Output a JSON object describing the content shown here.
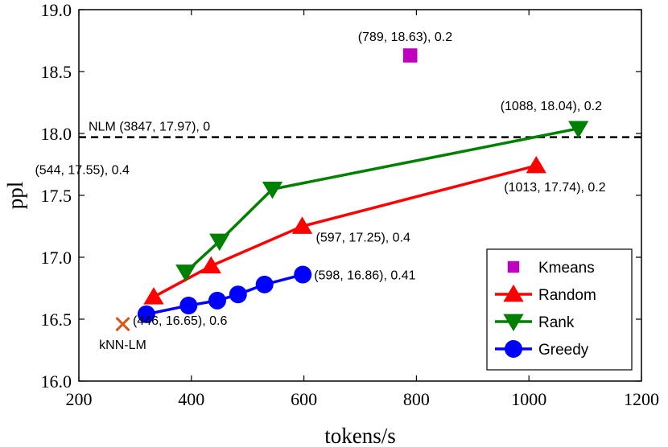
{
  "chart_data": {
    "type": "line",
    "xlabel": "tokens/s",
    "ylabel": "ppl",
    "xlim": [
      200,
      1200
    ],
    "ylim": [
      16.0,
      19.0
    ],
    "xticks": [
      200,
      400,
      600,
      800,
      1000,
      1200
    ],
    "yticks": [
      16.0,
      16.5,
      17.0,
      17.5,
      18.0,
      18.5,
      19.0
    ],
    "xtick_labels": [
      "200",
      "400",
      "600",
      "800",
      "1000",
      "1200"
    ],
    "ytick_labels": [
      "16.0",
      "16.5",
      "17.0",
      "17.5",
      "18.0",
      "18.5",
      "19.0"
    ],
    "grid": false,
    "legend_position": "bottom-right",
    "reference_line": {
      "name": "NLM",
      "y": 17.97,
      "label": "NLM (3847, 17.97), 0"
    },
    "series": [
      {
        "name": "Kmeans",
        "marker": "square",
        "color": "#c000c0",
        "line": false,
        "x": [
          789
        ],
        "y": [
          18.63
        ]
      },
      {
        "name": "Random",
        "marker": "triangle-up",
        "color": "#ff0000",
        "line": true,
        "x": [
          333,
          435,
          597,
          1013
        ],
        "y": [
          16.68,
          16.93,
          17.25,
          17.74
        ]
      },
      {
        "name": "Rank",
        "marker": "triangle-down",
        "color": "#008000",
        "line": true,
        "x": [
          390,
          450,
          544,
          1088
        ],
        "y": [
          16.88,
          17.13,
          17.55,
          18.04
        ]
      },
      {
        "name": "Greedy",
        "marker": "circle",
        "color": "#0000ff",
        "line": true,
        "x": [
          320,
          395,
          446,
          483,
          530,
          598
        ],
        "y": [
          16.54,
          16.61,
          16.65,
          16.7,
          16.78,
          16.86
        ]
      }
    ],
    "extra_points": [
      {
        "name": "kNN-LM",
        "marker": "x",
        "color": "#d95319",
        "x": 278,
        "y": 16.46,
        "label": "kNN-LM"
      }
    ],
    "annotations": [
      {
        "text": "(789, 18.63), 0.2",
        "x": 789,
        "y": 18.63
      },
      {
        "text": "(1088, 18.04), 0.2",
        "x": 1088,
        "y": 18.04
      },
      {
        "text": "(544, 17.55), 0.4",
        "x": 544,
        "y": 17.55
      },
      {
        "text": "(1013, 17.74), 0.2",
        "x": 1013,
        "y": 17.74
      },
      {
        "text": "(597, 17.25), 0.4",
        "x": 597,
        "y": 17.25
      },
      {
        "text": "(598, 16.86), 0.41",
        "x": 598,
        "y": 16.86
      },
      {
        "text": "(446, 16.65), 0.6",
        "x": 446,
        "y": 16.65
      }
    ]
  }
}
